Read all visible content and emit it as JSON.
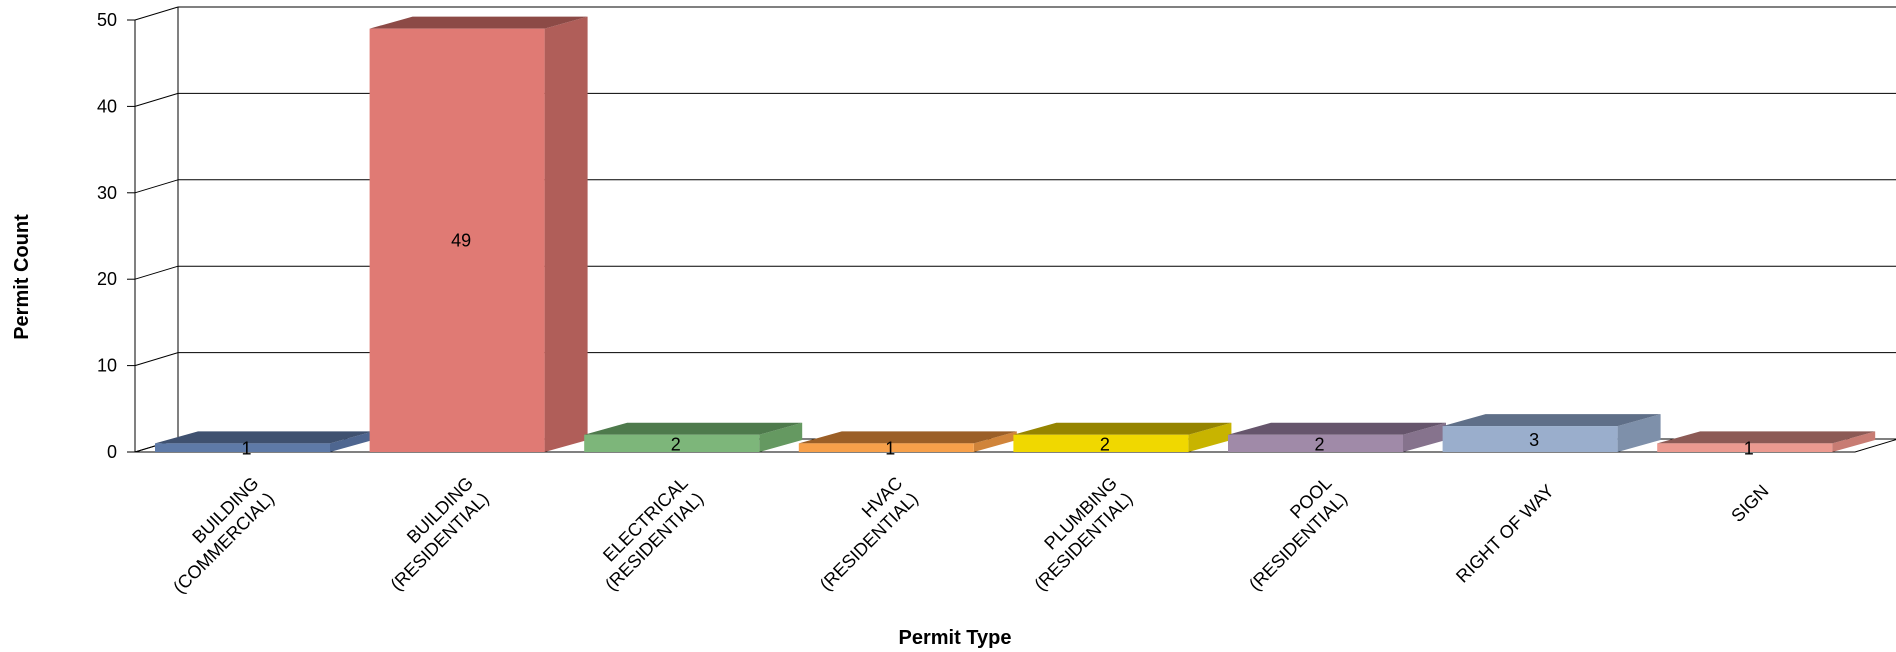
{
  "chart_data": {
    "type": "bar",
    "title": "",
    "xlabel": "Permit Type",
    "ylabel": "Permit Count",
    "ylim": [
      0,
      50
    ],
    "yticks": [
      0,
      10,
      20,
      30,
      40,
      50
    ],
    "grid": true,
    "legend": "none",
    "categories": [
      [
        "BUILDING",
        "(COMMERCIAL)"
      ],
      [
        "BUILDING",
        "(RESIDENTIAL)"
      ],
      [
        "ELECTRICAL",
        "(RESIDENTIAL)"
      ],
      [
        "HVAC",
        "(RESIDENTIAL)"
      ],
      [
        "PLUMBING",
        "(RESIDENTIAL)"
      ],
      [
        "POOL",
        "(RESIDENTIAL)"
      ],
      [
        "RIGHT OF WAY"
      ],
      [
        "SIGN"
      ]
    ],
    "values": [
      1,
      49,
      2,
      1,
      2,
      2,
      3,
      1
    ],
    "data_labels": [
      "1",
      "49",
      "2",
      "1",
      "2",
      "2",
      "3",
      "1"
    ],
    "colors": [
      {
        "front": "#5e7aa8",
        "top": "#3f5170",
        "side": "#4e6690"
      },
      {
        "front": "#e07a74",
        "top": "#8c4a46",
        "side": "#b05e59"
      },
      {
        "front": "#7db67a",
        "top": "#4e7a4c",
        "side": "#659961"
      },
      {
        "front": "#f7a04a",
        "top": "#9b5f27",
        "side": "#d0843a"
      },
      {
        "front": "#f0d800",
        "top": "#958400",
        "side": "#c8b400"
      },
      {
        "front": "#a08aa8",
        "top": "#66556c",
        "side": "#86738d"
      },
      {
        "front": "#9aaecc",
        "top": "#5f6f88",
        "side": "#7e90aa"
      },
      {
        "front": "#ec9a90",
        "top": "#8c5a55",
        "side": "#c87c73"
      }
    ]
  }
}
